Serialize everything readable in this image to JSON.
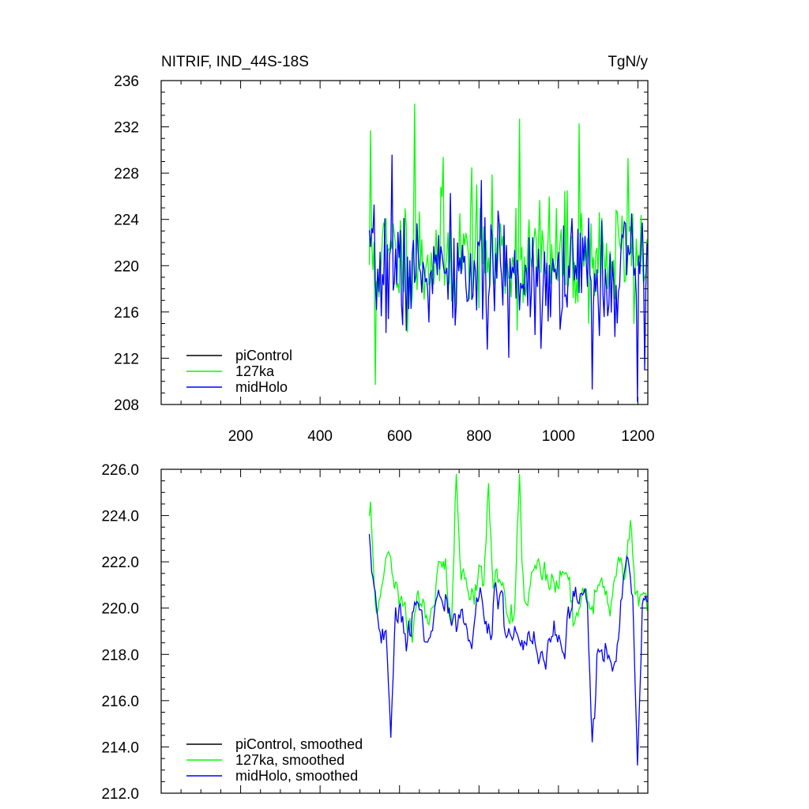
{
  "header": {
    "title": "NITRIF, IND_44S-18S",
    "units": "TgN/y"
  },
  "chart_data": [
    {
      "type": "line",
      "panel": "top",
      "title": "NITRIF, IND_44S-18S",
      "units": "TgN/y",
      "xlim": [
        0,
        1225
      ],
      "ylim": [
        208,
        236
      ],
      "x_ticks": [
        200,
        400,
        600,
        800,
        1000,
        1200
      ],
      "x_tick_labels": [
        "200",
        "400",
        "600",
        "800",
        "1000",
        "1200"
      ],
      "y_ticks": [
        208,
        212,
        216,
        220,
        224,
        228,
        232,
        236
      ],
      "y_tick_labels": [
        "208",
        "212",
        "216",
        "220",
        "224",
        "228",
        "232",
        "236"
      ],
      "grid": false,
      "legend_position": "bottom-left",
      "series": [
        {
          "name": "piControl",
          "color": "#000000",
          "x": [],
          "y": []
        },
        {
          "name": "127ka",
          "color": "#00ff00",
          "x_start": 524,
          "x_end": 1225,
          "step": 3,
          "seed": 11,
          "base": 220.8,
          "noise_sd": 2.6,
          "peaks": [
            [
              528,
              231.7
            ],
            [
              540,
              209.7
            ],
            [
              637,
              234.0
            ],
            [
              710,
              229.4
            ],
            [
              783,
              228.5
            ],
            [
              901,
              232.7
            ],
            [
              1052,
              232.3
            ],
            [
              1175,
              229.3
            ]
          ]
        },
        {
          "name": "midHolo",
          "color": "#0000ff",
          "x_start": 524,
          "x_end": 1225,
          "step": 3,
          "seed": 7,
          "base": 219.3,
          "noise_sd": 2.6,
          "peaks": [
            [
              580,
              229.6
            ],
            [
              1085,
              209.3
            ],
            [
              1198,
              208.2
            ],
            [
              1218,
              211.0
            ]
          ]
        }
      ]
    },
    {
      "type": "line",
      "panel": "bottom",
      "xlim": [
        0,
        1225
      ],
      "ylim": [
        212.0,
        226.0
      ],
      "x_ticks": [
        200,
        400,
        600,
        800,
        1000,
        1200
      ],
      "x_tick_labels": [],
      "y_ticks": [
        212.0,
        214.0,
        216.0,
        218.0,
        220.0,
        222.0,
        224.0,
        226.0
      ],
      "y_tick_labels": [
        "212.0",
        "214.0",
        "216.0",
        "218.0",
        "220.0",
        "222.0",
        "224.0",
        "226.0"
      ],
      "grid": false,
      "legend_position": "bottom-left",
      "series": [
        {
          "name": "piControl, smoothed",
          "color": "#000000",
          "x": [],
          "y": []
        },
        {
          "name": "127ka, smoothed",
          "color": "#00ff00",
          "x_start": 524,
          "x_end": 1225,
          "step": 3,
          "seed": 11,
          "smooth_window": 9,
          "base": 220.8,
          "noise_sd": 2.6,
          "peaks": [
            [
              528,
              224.6
            ],
            [
              742,
              225.8
            ],
            [
              903,
              225.8
            ],
            [
              823,
              225.4
            ],
            [
              1180,
              223.8
            ]
          ]
        },
        {
          "name": "midHolo, smoothed",
          "color": "#0000ff",
          "x_start": 524,
          "x_end": 1225,
          "step": 3,
          "seed": 7,
          "smooth_window": 9,
          "base": 219.3,
          "noise_sd": 2.6,
          "peaks": [
            [
              578,
              214.4
            ],
            [
              1200,
              213.2
            ],
            [
              1085,
              214.2
            ]
          ]
        }
      ]
    }
  ]
}
